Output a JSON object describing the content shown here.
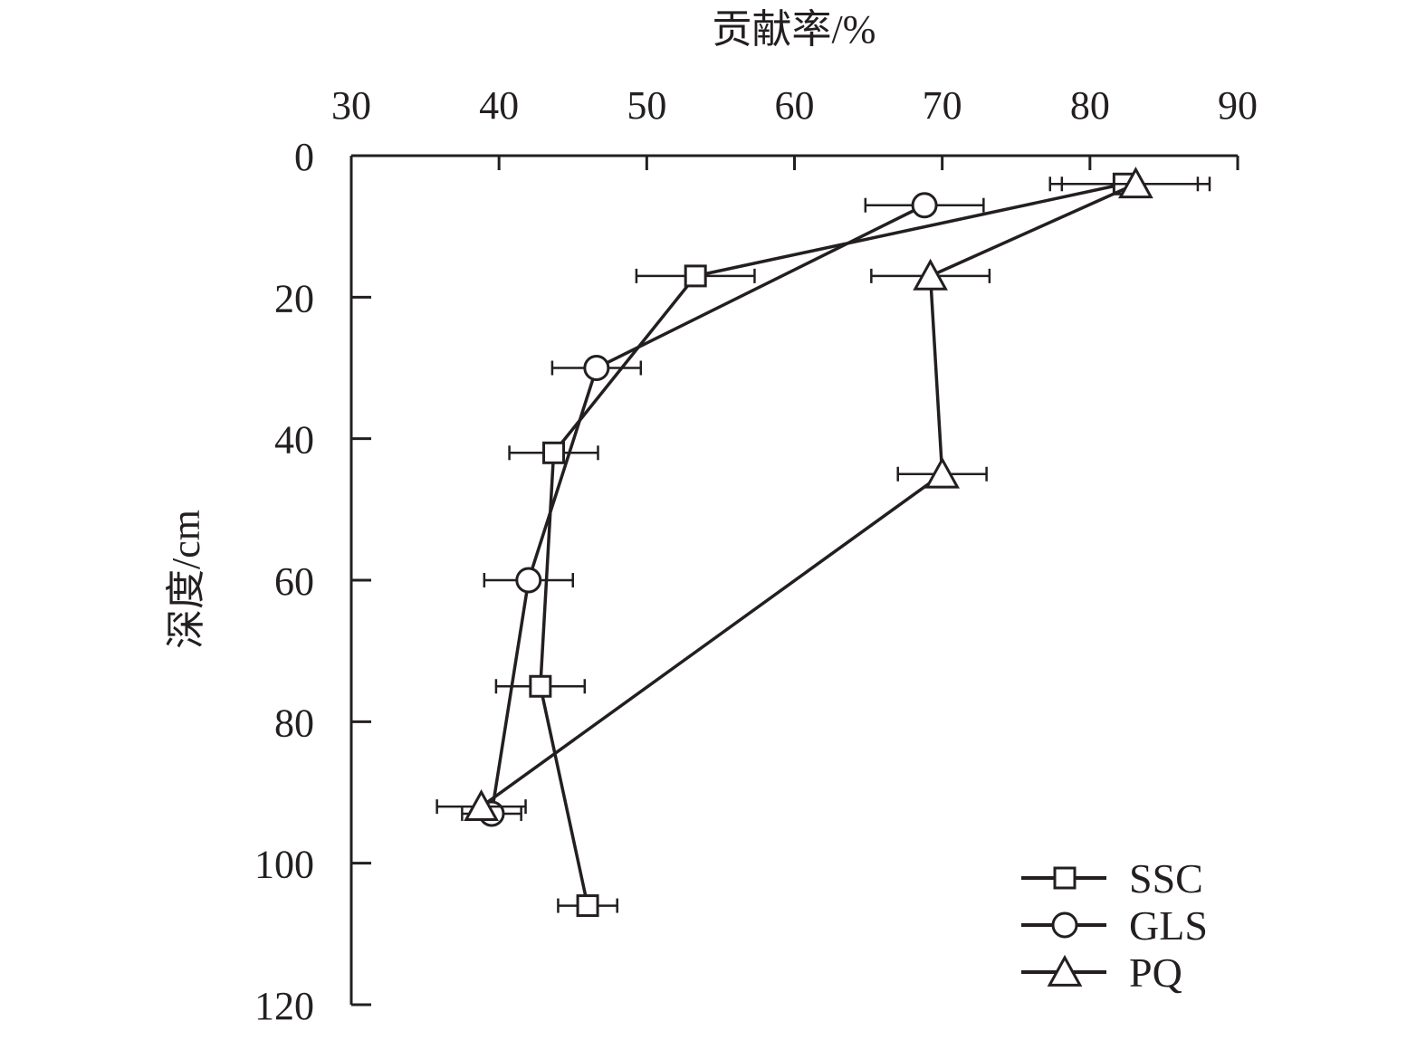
{
  "chart_data": {
    "type": "line",
    "orientation": "x-top, y-depth-inverted",
    "xlabel": "贡献率/%",
    "ylabel": "深度/cm",
    "xlim": [
      30,
      90
    ],
    "ylim": [
      0,
      120
    ],
    "x_ticks": [
      "30",
      "40",
      "50",
      "60",
      "70",
      "80",
      "90"
    ],
    "y_ticks": [
      "0",
      "20",
      "40",
      "60",
      "80",
      "100",
      "120"
    ],
    "grid": false,
    "legend_position": "bottom-right",
    "series": [
      {
        "name": "SSC",
        "marker": "square",
        "points": [
          {
            "x": 82.3,
            "y": 4,
            "err": 5
          },
          {
            "x": 53.3,
            "y": 17,
            "err": 4
          },
          {
            "x": 43.7,
            "y": 42,
            "err": 3
          },
          {
            "x": 42.8,
            "y": 75,
            "err": 3
          },
          {
            "x": 46.0,
            "y": 106,
            "err": 2
          }
        ]
      },
      {
        "name": "GLS",
        "marker": "circle",
        "points": [
          {
            "x": 68.8,
            "y": 7,
            "err": 4
          },
          {
            "x": 46.6,
            "y": 30,
            "err": 3
          },
          {
            "x": 42.0,
            "y": 60,
            "err": 3
          },
          {
            "x": 39.5,
            "y": 93,
            "err": 2
          }
        ]
      },
      {
        "name": "PQ",
        "marker": "triangle",
        "points": [
          {
            "x": 83.1,
            "y": 4,
            "err": 5
          },
          {
            "x": 69.2,
            "y": 17,
            "err": 4
          },
          {
            "x": 70.0,
            "y": 45,
            "err": 3
          },
          {
            "x": 38.8,
            "y": 92,
            "err": 3
          }
        ]
      }
    ]
  }
}
